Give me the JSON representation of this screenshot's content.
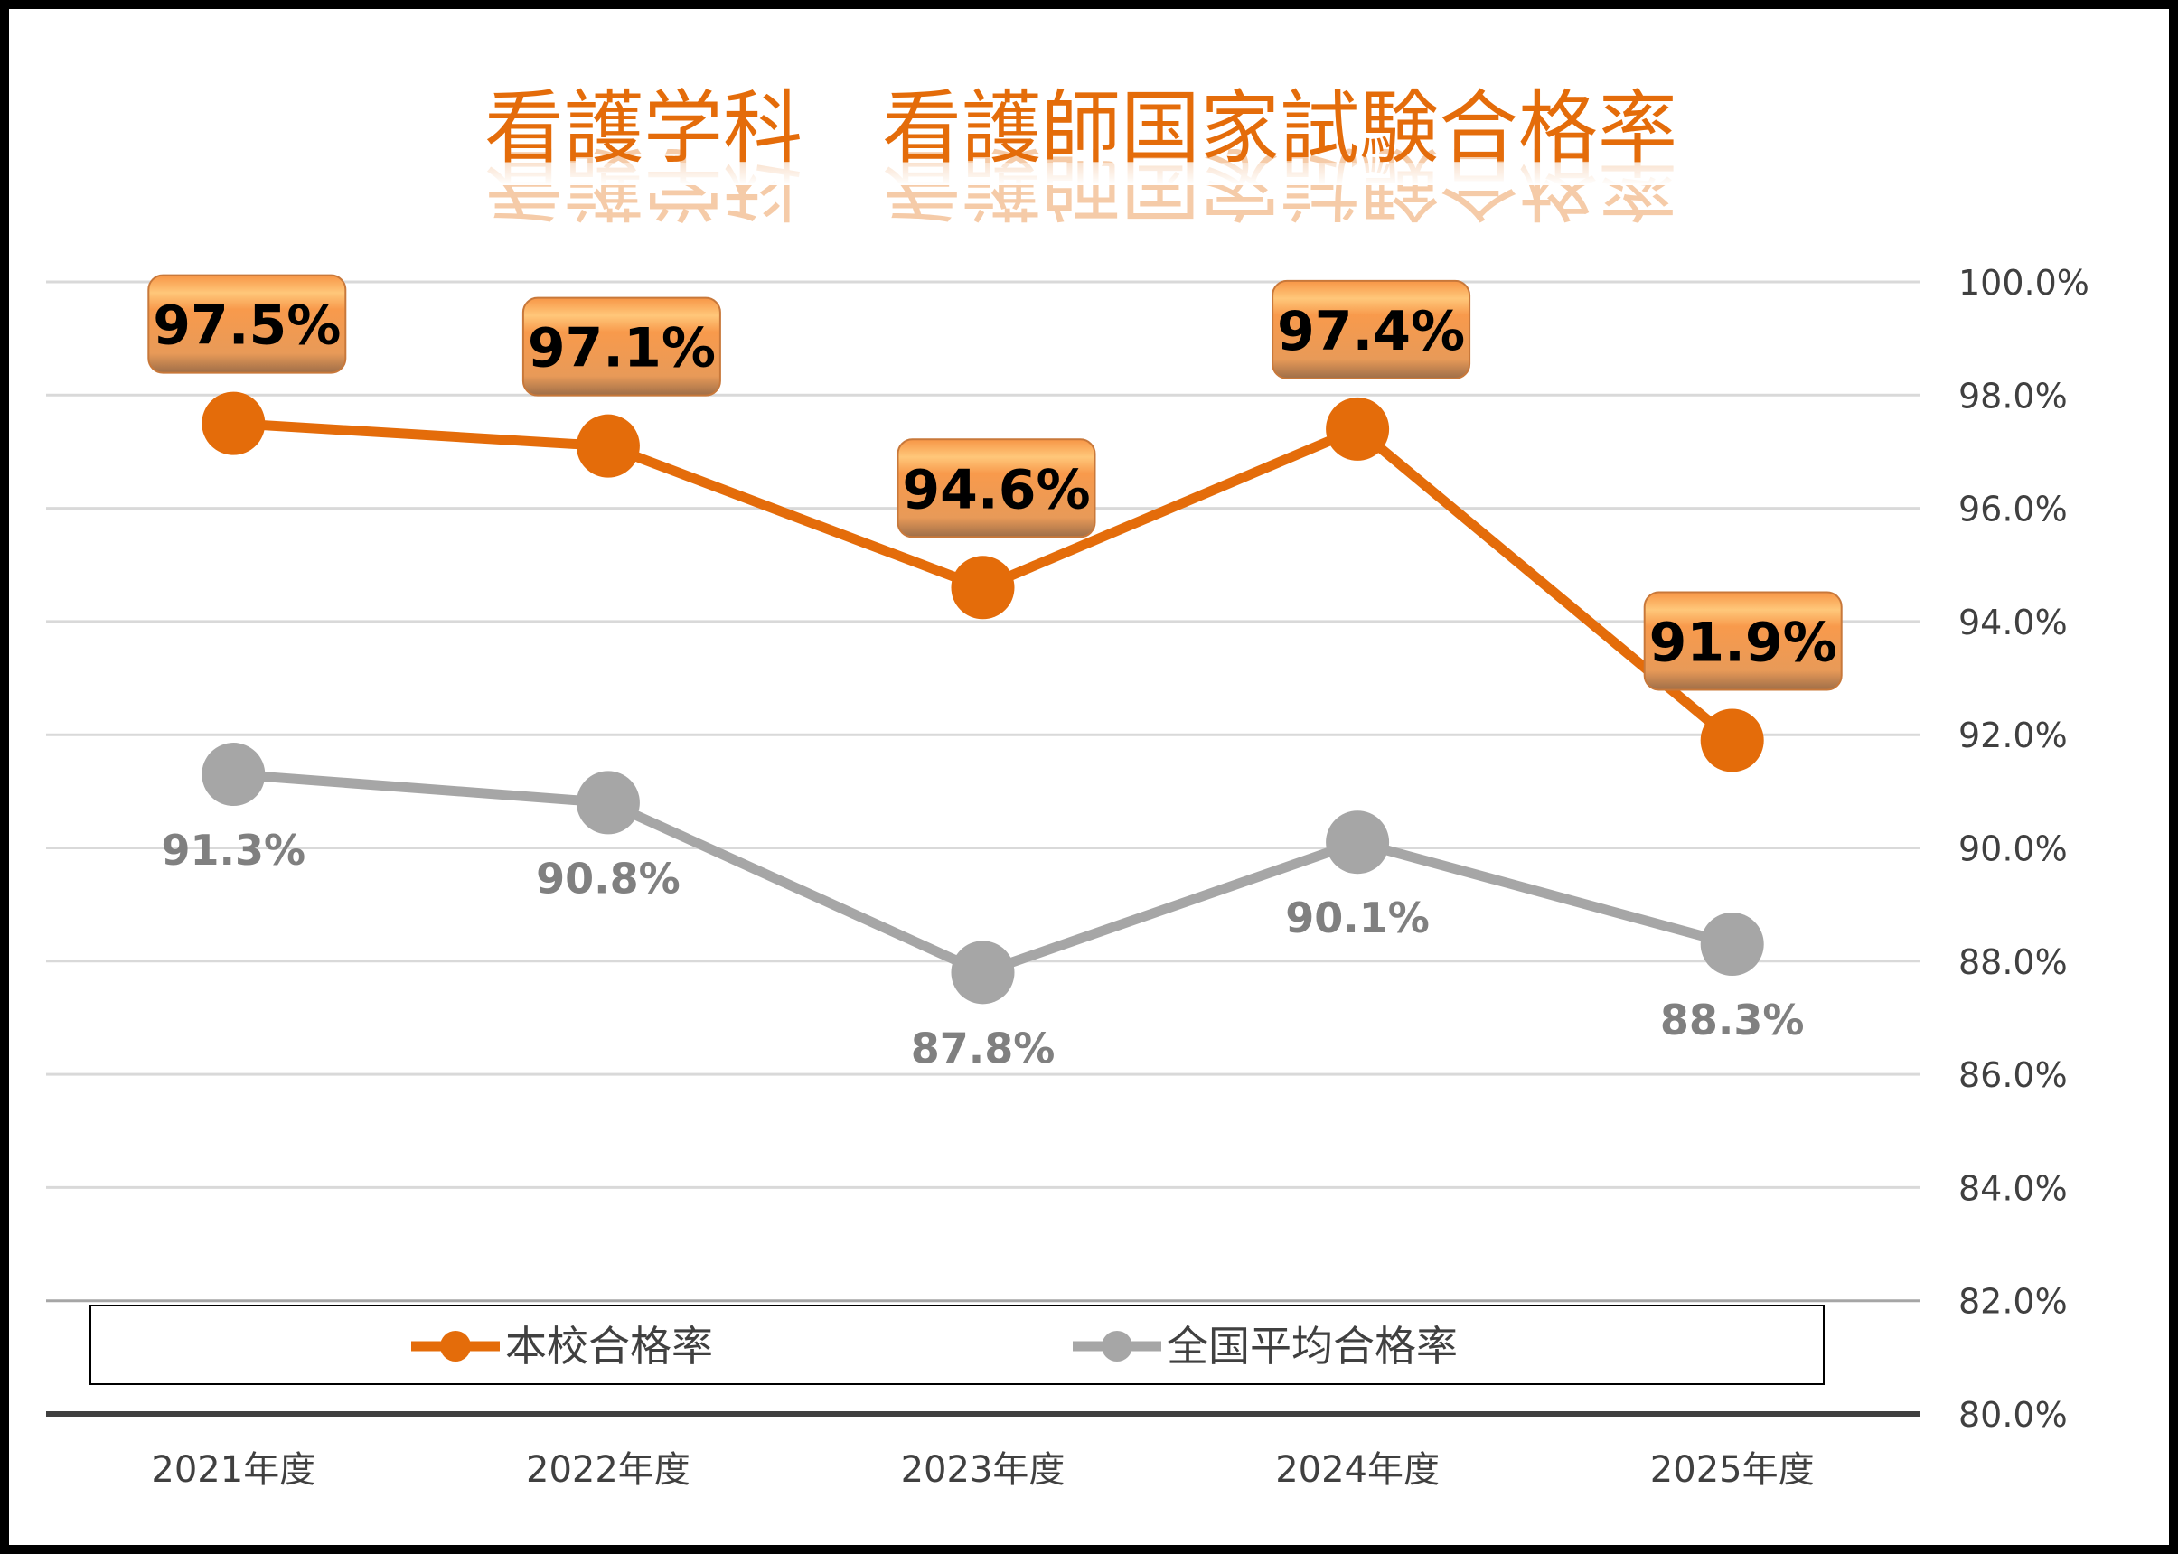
{
  "chart_data": {
    "type": "line",
    "title": "看護学科　看護師国家試験合格率",
    "categories": [
      "2021年度",
      "2022年度",
      "2023年度",
      "2024年度",
      "2025年度"
    ],
    "series": [
      {
        "name": "本校合格率",
        "values": [
          97.5,
          97.1,
          94.6,
          97.4,
          91.9
        ],
        "labels": [
          "97.5%",
          "97.1%",
          "94.6%",
          "97.4%",
          "91.9%"
        ],
        "color": "#E46C0A"
      },
      {
        "name": "全国平均合格率",
        "values": [
          91.3,
          90.8,
          87.8,
          90.1,
          88.3
        ],
        "labels": [
          "91.3%",
          "90.8%",
          "87.8%",
          "90.1%",
          "88.3%"
        ],
        "color": "#A6A6A6"
      }
    ],
    "yaxis": {
      "position": "right",
      "ylim": [
        80,
        100
      ],
      "ticks": [
        80,
        82,
        84,
        86,
        88,
        90,
        92,
        94,
        96,
        98,
        100
      ],
      "tick_labels": [
        "80.0%",
        "82.0%",
        "84.0%",
        "86.0%",
        "88.0%",
        "90.0%",
        "92.0%",
        "94.0%",
        "96.0%",
        "98.0%",
        "100.0%"
      ]
    },
    "grid": true,
    "legend": "bottom",
    "colors": {
      "title": "#E46C0A",
      "label_box": "#F79646",
      "frame": "#000000"
    }
  }
}
